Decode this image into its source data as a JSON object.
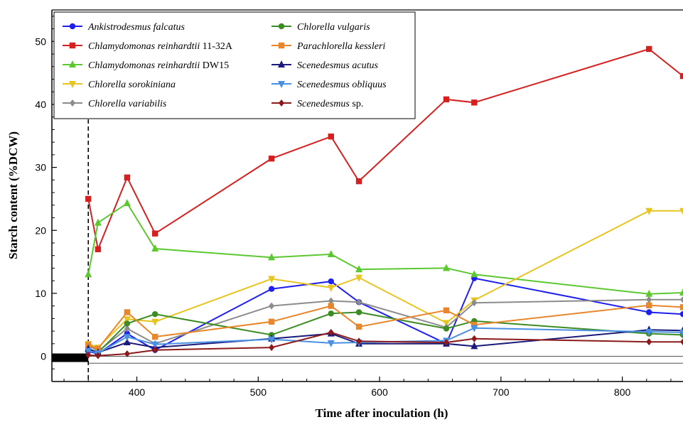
{
  "chart_data": {
    "type": "line",
    "xlabel": "Time after inoculation (h)",
    "ylabel": "Starch content (%DCW)",
    "xlim": [
      330,
      850
    ],
    "ylim": [
      -4,
      55
    ],
    "x_ticks": [
      400,
      500,
      600,
      700,
      800
    ],
    "y_ticks": [
      0,
      10,
      20,
      30,
      40,
      50
    ],
    "grid": false,
    "legend_position": "top-left",
    "reference_line_x": 360,
    "series": [
      {
        "name_italic": "Ankistrodesmus falcatus",
        "name_suffix": "",
        "color": "#1f1ff0",
        "marker": "circle",
        "x": [
          360,
          368,
          392,
          415,
          511,
          560,
          583,
          655,
          678,
          822,
          850
        ],
        "y": [
          0.8,
          0.4,
          3.6,
          1.0,
          10.7,
          11.9,
          8.6,
          2.0,
          12.4,
          7.0,
          6.7
        ]
      },
      {
        "name_italic": "Chlamydomonas reinhardtii",
        "name_suffix": " 11-32A",
        "color": "#d62020",
        "marker": "square",
        "x": [
          360,
          368,
          392,
          415,
          511,
          560,
          583,
          655,
          678,
          822,
          850
        ],
        "y": [
          25.0,
          17.0,
          28.4,
          19.5,
          31.4,
          34.9,
          27.8,
          40.8,
          40.3,
          48.8,
          44.5
        ]
      },
      {
        "name_italic": "Chlamydomonas reinhardtii",
        "name_suffix": " DW15",
        "color": "#5cc830",
        "marker": "triangle-up",
        "x": [
          360,
          368,
          392,
          415,
          511,
          560,
          583,
          655,
          678,
          822,
          850
        ],
        "y": [
          13.0,
          21.2,
          24.3,
          17.1,
          15.7,
          16.2,
          13.8,
          14.0,
          13.0,
          9.9,
          10.1
        ]
      },
      {
        "name_italic": "Chlorella sorokiniana",
        "name_suffix": "",
        "color": "#e8c420",
        "marker": "triangle-down",
        "x": [
          360,
          368,
          392,
          415,
          511,
          560,
          583,
          655,
          678,
          822,
          850
        ],
        "y": [
          2.0,
          1.4,
          5.9,
          5.5,
          12.3,
          10.9,
          12.5,
          5.3,
          8.9,
          23.1,
          23.1
        ]
      },
      {
        "name_italic": "Chlorella variabilis",
        "name_suffix": "",
        "color": "#8c8c8c",
        "marker": "diamond",
        "x": [
          360,
          368,
          392,
          415,
          511,
          560,
          583,
          655,
          678,
          822,
          850
        ],
        "y": [
          1.8,
          0.8,
          4.4,
          2.0,
          8.0,
          8.8,
          8.6,
          4.6,
          8.5,
          9.0,
          9.0
        ]
      },
      {
        "name_italic": "Chlorella vulgaris",
        "name_suffix": "",
        "color": "#3c8c24",
        "marker": "circle",
        "x": [
          360,
          368,
          392,
          415,
          511,
          560,
          583,
          655,
          678,
          822,
          850
        ],
        "y": [
          1.0,
          0.6,
          5.2,
          6.7,
          3.4,
          6.8,
          7.0,
          4.4,
          5.6,
          3.6,
          3.4
        ]
      },
      {
        "name_italic": "Parachlorella kessleri",
        "name_suffix": "",
        "color": "#e8862c",
        "marker": "square",
        "x": [
          360,
          368,
          392,
          415,
          511,
          560,
          583,
          655,
          678,
          822,
          850
        ],
        "y": [
          1.8,
          1.2,
          7.0,
          3.1,
          5.5,
          8.0,
          4.7,
          7.3,
          5.0,
          8.1,
          7.8
        ]
      },
      {
        "name_italic": "Scenedesmus acutus",
        "name_suffix": "",
        "color": "#1a1a7a",
        "marker": "triangle-up",
        "x": [
          360,
          368,
          392,
          415,
          511,
          560,
          583,
          655,
          678,
          822,
          850
        ],
        "y": [
          1.2,
          0.6,
          2.2,
          1.4,
          2.8,
          3.6,
          2.0,
          2.0,
          1.6,
          4.2,
          4.1
        ]
      },
      {
        "name_italic": "Scenedesmus obliquus",
        "name_suffix": "",
        "color": "#4a90e2",
        "marker": "triangle-down",
        "x": [
          360,
          368,
          392,
          415,
          511,
          560,
          583,
          655,
          678,
          822,
          850
        ],
        "y": [
          0.9,
          0.5,
          3.1,
          1.9,
          2.7,
          2.1,
          2.2,
          2.5,
          4.5,
          3.9,
          3.8
        ]
      },
      {
        "name_italic": "Scenedesmus",
        "name_suffix": " sp.",
        "color": "#8c1a1a",
        "marker": "diamond",
        "x": [
          360,
          368,
          392,
          415,
          511,
          560,
          583,
          655,
          678,
          822,
          850
        ],
        "y": [
          0.2,
          0.1,
          0.4,
          1.0,
          1.4,
          3.8,
          2.4,
          2.2,
          2.8,
          2.3,
          2.3
        ]
      }
    ]
  }
}
